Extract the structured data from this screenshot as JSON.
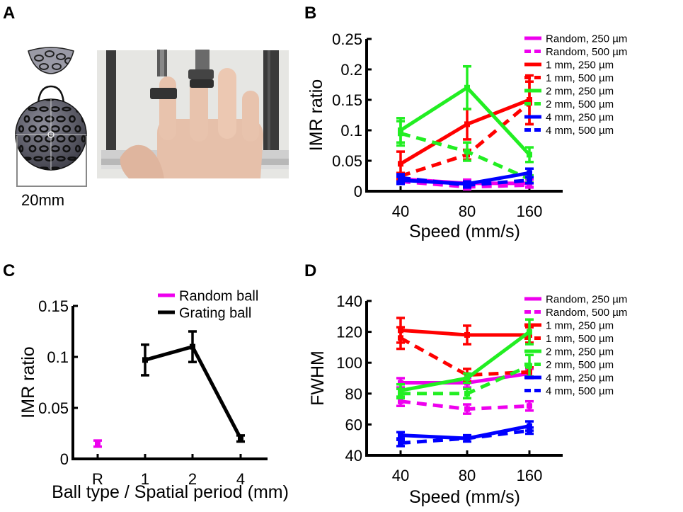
{
  "panel_labels": {
    "A": "A",
    "B": "B",
    "C": "C",
    "D": "D"
  },
  "panel_a": {
    "scale_label": "20mm",
    "ball_fill": "#5a5a66",
    "cap_fill": "#9a9aa6",
    "photo_bg": "#e4e4e1",
    "skin": "#e8c3ad",
    "rail": "#3a3a3a"
  },
  "chart_data": [
    {
      "id": "B",
      "type": "line",
      "xlabel": "Speed (mm/s)",
      "ylabel": "IMR ratio",
      "categories": [
        "40",
        "80",
        "160"
      ],
      "ylim": [
        0,
        0.25
      ],
      "yticks": [
        0,
        0.05,
        0.1,
        0.15,
        0.2,
        0.25
      ],
      "ytick_labels": [
        "0",
        "0.05",
        "0.1",
        "0.15",
        "0.2",
        "0.25"
      ],
      "series": [
        {
          "name": "Random, 250 µm",
          "color": "#ee00ee",
          "dash": false,
          "values": [
            0.02,
            0.013,
            0.013
          ],
          "err": [
            0.006,
            0.006,
            0.006
          ]
        },
        {
          "name": "Random, 500 µm",
          "color": "#ee00ee",
          "dash": true,
          "values": [
            0.016,
            0.007,
            0.01
          ],
          "err": [
            0.004,
            0.004,
            0.004
          ]
        },
        {
          "name": "1 mm, 250 µm",
          "color": "#ff0000",
          "dash": false,
          "values": [
            0.045,
            0.11,
            0.15
          ],
          "err": [
            0.02,
            0.025,
            0.04
          ]
        },
        {
          "name": "1 mm, 500 µm",
          "color": "#ff0000",
          "dash": true,
          "values": [
            0.025,
            0.06,
            0.145
          ],
          "err": [
            0.005,
            0.008,
            0.035
          ]
        },
        {
          "name": "2 mm, 250 µm",
          "color": "#22ee22",
          "dash": false,
          "values": [
            0.1,
            0.17,
            0.06
          ],
          "err": [
            0.02,
            0.035,
            0.012
          ]
        },
        {
          "name": "2 mm, 500 µm",
          "color": "#22ee22",
          "dash": true,
          "values": [
            0.095,
            0.065,
            0.02
          ],
          "err": [
            0.02,
            0.015,
            0.006
          ]
        },
        {
          "name": "4 mm, 250 µm",
          "color": "#0000ff",
          "dash": false,
          "values": [
            0.018,
            0.012,
            0.03
          ],
          "err": [
            0.006,
            0.004,
            0.007
          ]
        },
        {
          "name": "4 mm, 500 µm",
          "color": "#0000ff",
          "dash": true,
          "values": [
            0.022,
            0.01,
            0.018
          ],
          "err": [
            0.006,
            0.004,
            0.005
          ]
        }
      ]
    },
    {
      "id": "C",
      "type": "line",
      "xlabel": "Ball type / Spatial period (mm)",
      "ylabel": "IMR ratio",
      "categories": [
        "R",
        "1",
        "2",
        "4"
      ],
      "ylim": [
        0,
        0.15
      ],
      "yticks": [
        0,
        0.05,
        0.1,
        0.15
      ],
      "ytick_labels": [
        "0",
        "0.05",
        "0.1",
        "0.15"
      ],
      "series": [
        {
          "name": "Random ball",
          "color": "#ee00ee",
          "dash": false,
          "x": [
            "R"
          ],
          "values": [
            0.015
          ],
          "err": [
            0.003
          ]
        },
        {
          "name": "Grating ball",
          "color": "#000000",
          "dash": false,
          "x": [
            "1",
            "2",
            "4"
          ],
          "values": [
            0.097,
            0.11,
            0.02
          ],
          "err": [
            0.015,
            0.015,
            0.003
          ]
        }
      ]
    },
    {
      "id": "D",
      "type": "line",
      "xlabel": "Speed (mm/s)",
      "ylabel": "FWHM",
      "categories": [
        "40",
        "80",
        "160"
      ],
      "ylim": [
        40,
        140
      ],
      "yticks": [
        40,
        60,
        80,
        100,
        120,
        140
      ],
      "ytick_labels": [
        "40",
        "60",
        "80",
        "100",
        "120",
        "140"
      ],
      "series": [
        {
          "name": "Random, 250 µm",
          "color": "#ee00ee",
          "dash": false,
          "values": [
            87,
            87,
            93
          ],
          "err": [
            3,
            3,
            3
          ]
        },
        {
          "name": "Random, 500 µm",
          "color": "#ee00ee",
          "dash": true,
          "values": [
            75,
            70,
            72
          ],
          "err": [
            3,
            3,
            3
          ]
        },
        {
          "name": "1 mm, 250 µm",
          "color": "#ff0000",
          "dash": false,
          "values": [
            121,
            118,
            118
          ],
          "err": [
            8,
            6,
            5
          ]
        },
        {
          "name": "1 mm, 500 µm",
          "color": "#ff0000",
          "dash": true,
          "values": [
            116,
            92,
            94
          ],
          "err": [
            7,
            4,
            3
          ]
        },
        {
          "name": "2 mm, 250 µm",
          "color": "#22ee22",
          "dash": false,
          "values": [
            82,
            90,
            120
          ],
          "err": [
            4,
            3,
            8
          ]
        },
        {
          "name": "2 mm, 500 µm",
          "color": "#22ee22",
          "dash": true,
          "values": [
            80,
            80,
            98
          ],
          "err": [
            3,
            3,
            7
          ]
        },
        {
          "name": "4 mm, 250 µm",
          "color": "#0000ff",
          "dash": false,
          "values": [
            53,
            51,
            59
          ],
          "err": [
            2,
            2,
            3
          ]
        },
        {
          "name": "4 mm, 500 µm",
          "color": "#0000ff",
          "dash": true,
          "values": [
            48,
            51,
            56
          ],
          "err": [
            2,
            2,
            2
          ]
        }
      ]
    }
  ]
}
